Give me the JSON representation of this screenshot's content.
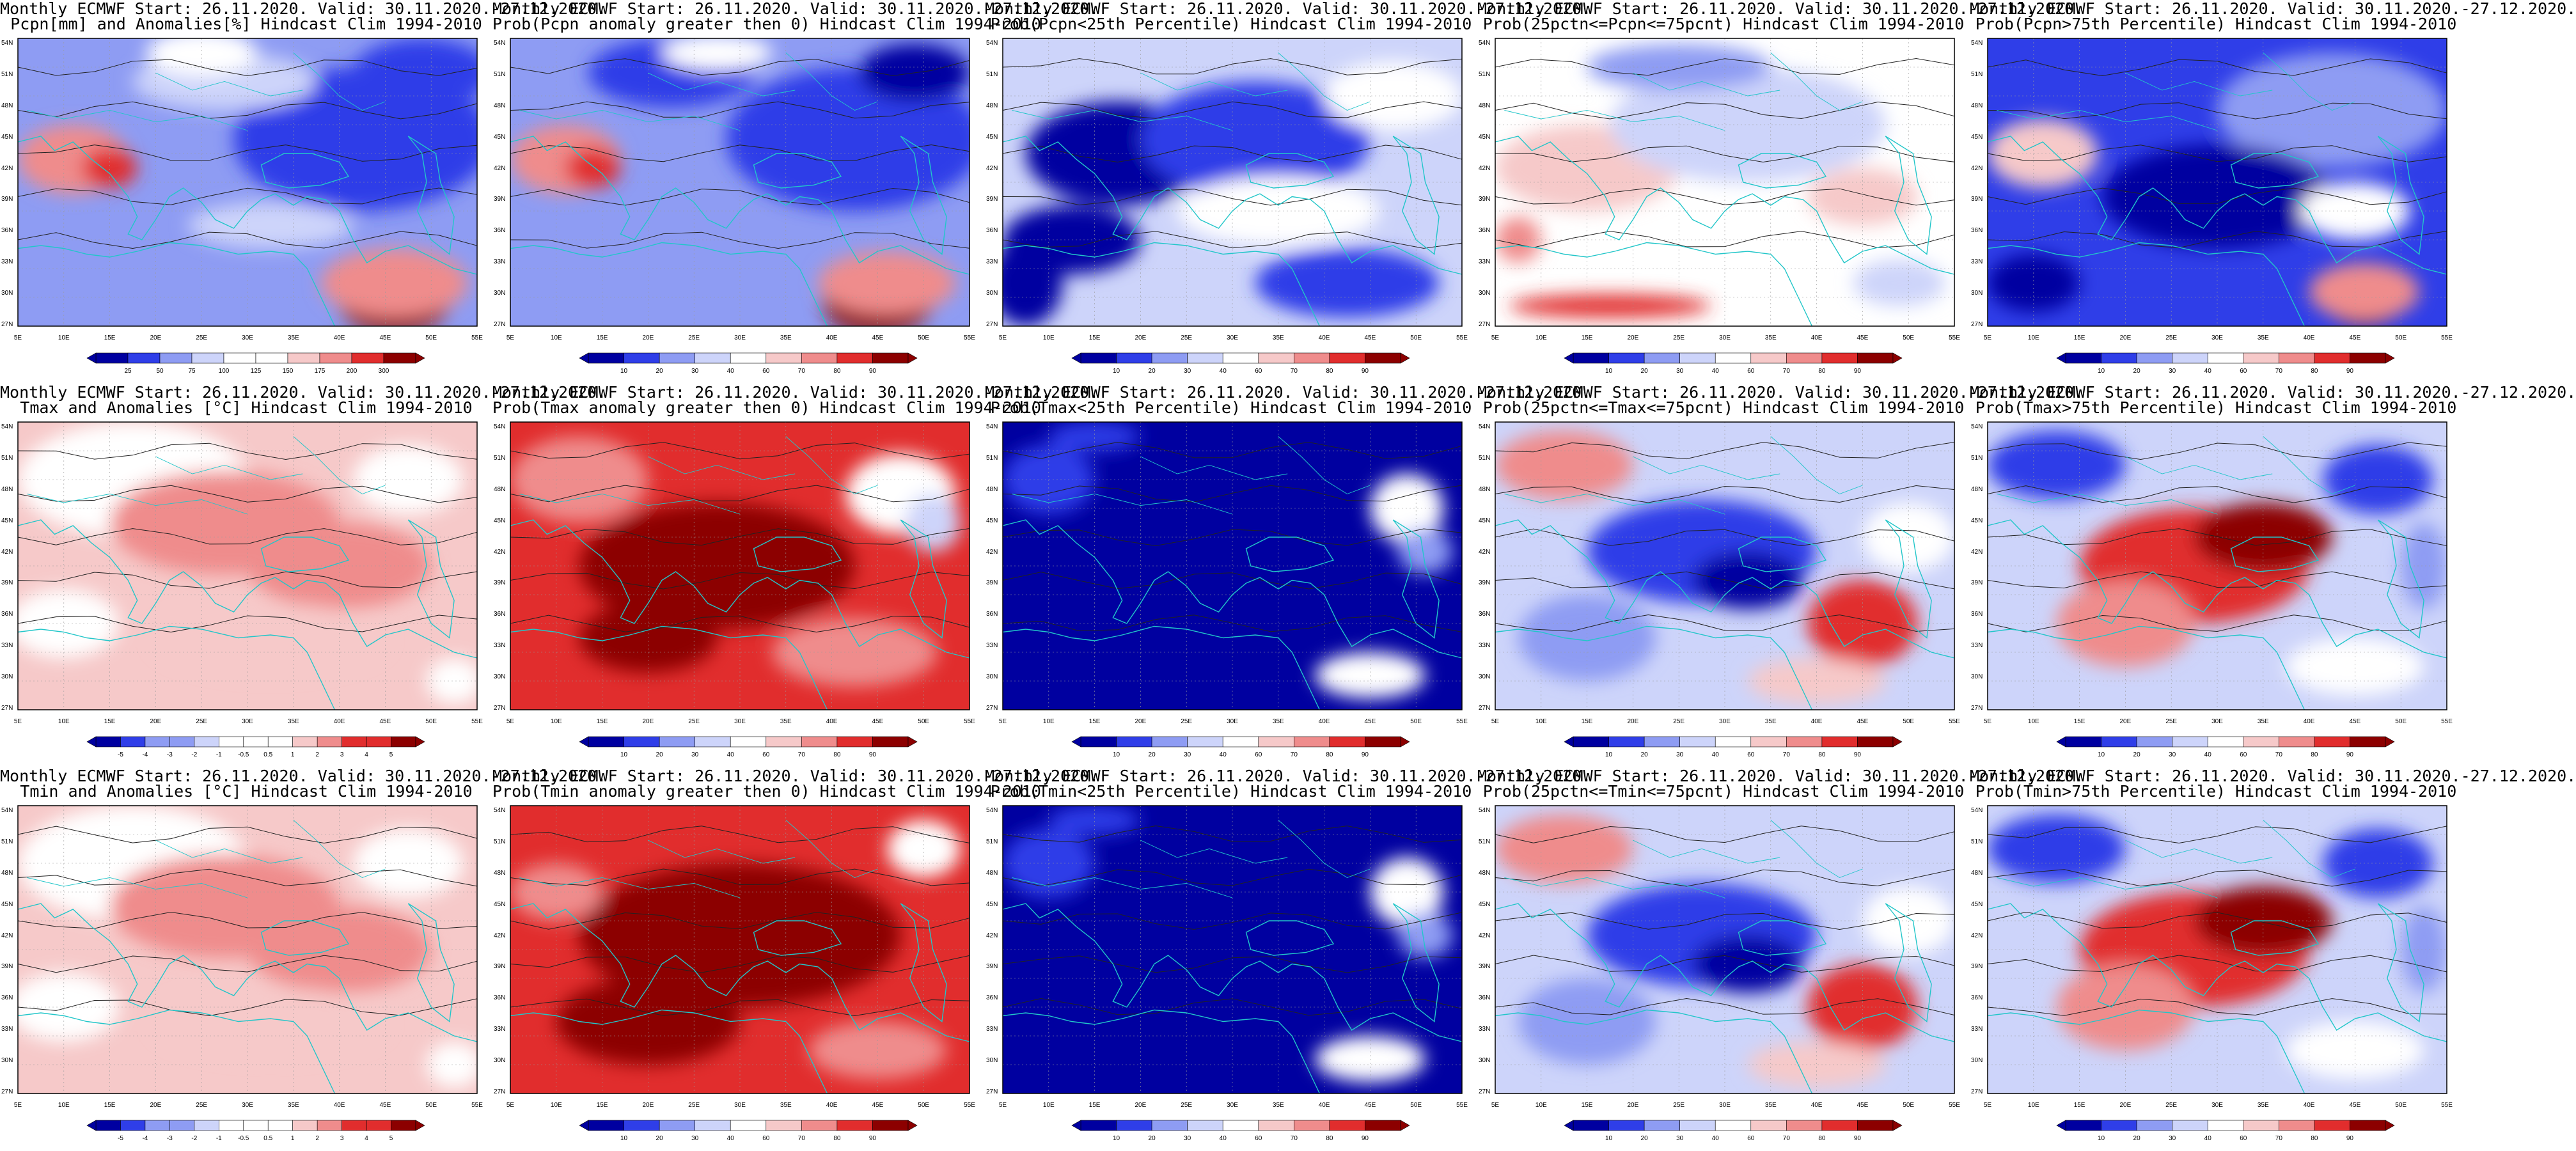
{
  "colors": {
    "coast": "#22c6c9",
    "contour": "#222222",
    "neg3": "#0000a0",
    "neg2": "#2f3ee8",
    "neg1": "#8e9cf3",
    "neg0": "#cdd4fa",
    "neutral": "#ffffff",
    "pos0": "#f6c9c9",
    "pos1": "#ef8c8c",
    "pos2": "#e12d2d",
    "pos3": "#8c0000"
  },
  "lat_labels": [
    "54N",
    "51N",
    "48N",
    "45N",
    "42N",
    "39N",
    "36N",
    "33N",
    "30N",
    "27N"
  ],
  "lon_labels": [
    "5E",
    "10E",
    "15E",
    "20E",
    "25E",
    "30E",
    "35E",
    "40E",
    "45E",
    "50E",
    "55E"
  ],
  "panels": [
    {
      "title1": "Monthly ECMWF Start: 26.11.2020. Valid: 30.11.2020.-27.12.2020.",
      "title2": "Pcpn[mm] and Anomalies[%] Hindcast Clim 1994-2010",
      "colorbar_ticks": [
        "25",
        "50",
        "75",
        "100",
        "125",
        "150",
        "175",
        "200",
        "300"
      ],
      "colorbar_kind": "anom",
      "style": "prec_anom",
      "lat_start": "54N"
    },
    {
      "title1": "Monthly ECMWF Start: 26.11.2020. Valid: 30.11.2020.-27.12.2020.",
      "title2": "Prob(Pcpn anomaly greater then 0) Hindcast Clim 1994-2010",
      "colorbar_ticks": [
        "10",
        "20",
        "30",
        "40",
        "60",
        "70",
        "80",
        "90"
      ],
      "colorbar_kind": "prob",
      "style": "prec_prob",
      "lat_start": "54N"
    },
    {
      "title1": "Monthly ECMWF Start: 26.11.2020. Valid: 30.11.2020.-27.12.2020.",
      "title2": "Prob(Pcpn<25th Percentile) Hindcast Clim 1994-2010",
      "colorbar_ticks": [
        "10",
        "20",
        "30",
        "40",
        "60",
        "70",
        "80",
        "90"
      ],
      "colorbar_kind": "prob",
      "style": "prec_low",
      "lat_start": "54N"
    },
    {
      "title1": "Monthly ECMWF Start: 26.11.2020. Valid: 30.11.2020.-27.12.2020.",
      "title2": "Prob(25pctn<=Pcpn<=75pcnt) Hindcast Clim 1994-2010",
      "colorbar_ticks": [
        "10",
        "20",
        "30",
        "40",
        "60",
        "70",
        "80",
        "90"
      ],
      "colorbar_kind": "prob",
      "style": "prec_mid",
      "lat_start": "54N"
    },
    {
      "title1": "Monthly ECMWF Start: 26.11.2020. Valid: 30.11.2020.-27.12.2020.",
      "title2": "Prob(Pcpn>75th Percentile) Hindcast Clim 1994-2010",
      "colorbar_ticks": [
        "10",
        "20",
        "30",
        "40",
        "60",
        "70",
        "80",
        "90"
      ],
      "colorbar_kind": "prob",
      "style": "prec_high",
      "lat_start": "54N"
    },
    {
      "title1": "Monthly ECMWF Start: 26.11.2020. Valid: 30.11.2020.-27.12.2020.",
      "title2": "Tmax and Anomalies [°C] Hindcast Clim 1994-2010",
      "colorbar_ticks": [
        "-5",
        "-4",
        "-3",
        "-2",
        "-1",
        "-0.5",
        "0.5",
        "1",
        "2",
        "3",
        "4",
        "5"
      ],
      "colorbar_kind": "anom",
      "style": "t_anom",
      "lat_start": "54N"
    },
    {
      "title1": "Monthly ECMWF Start: 26.11.2020. Valid: 30.11.2020.-27.12.2020.",
      "title2": "Prob(Tmax anomaly greater then 0) Hindcast Clim 1994-2010",
      "colorbar_ticks": [
        "10",
        "20",
        "30",
        "40",
        "60",
        "70",
        "80",
        "90"
      ],
      "colorbar_kind": "prob",
      "style": "t_prob",
      "lat_start": "54N"
    },
    {
      "title1": "Monthly ECMWF Start: 26.11.2020. Valid: 30.11.2020.-27.12.2020.",
      "title2": "Prob(Tmax<25th Percentile) Hindcast Clim 1994-2010",
      "colorbar_ticks": [
        "10",
        "20",
        "30",
        "40",
        "60",
        "70",
        "80",
        "90"
      ],
      "colorbar_kind": "prob",
      "style": "t_low",
      "lat_start": "54N"
    },
    {
      "title1": "Monthly ECMWF Start: 26.11.2020. Valid: 30.11.2020.-27.12.2020.",
      "title2": "Prob(25pctn<=Tmax<=75pcnt) Hindcast Clim 1994-2010",
      "colorbar_ticks": [
        "10",
        "20",
        "30",
        "40",
        "60",
        "70",
        "80",
        "90"
      ],
      "colorbar_kind": "prob",
      "style": "t_mid",
      "lat_start": "54N"
    },
    {
      "title1": "Monthly ECMWF Start: 26.11.2020. Valid: 30.11.2020.-27.12.2020.",
      "title2": "Prob(Tmax>75th Percentile) Hindcast Clim 1994-2010",
      "colorbar_ticks": [
        "10",
        "20",
        "30",
        "40",
        "60",
        "70",
        "80",
        "90"
      ],
      "colorbar_kind": "prob",
      "style": "t_high",
      "lat_start": "54N"
    },
    {
      "title1": "Monthly ECMWF Start: 26.11.2020. Valid: 30.11.2020.-27.12.2020.",
      "title2": "Tmin and Anomalies [°C] Hindcast Clim 1994-2010",
      "colorbar_ticks": [
        "-5",
        "-4",
        "-3",
        "-2",
        "-1",
        "-0.5",
        "0.5",
        "1",
        "2",
        "3",
        "4",
        "5"
      ],
      "colorbar_kind": "anom",
      "style": "t_anom",
      "lat_start": "54N"
    },
    {
      "title1": "Monthly ECMWF Start: 26.11.2020. Valid: 30.11.2020.-27.12.2020.",
      "title2": "Prob(Tmin anomaly greater then 0) Hindcast Clim 1994-2010",
      "colorbar_ticks": [
        "10",
        "20",
        "30",
        "40",
        "60",
        "70",
        "80",
        "90"
      ],
      "colorbar_kind": "prob",
      "style": "t_prob_strong",
      "lat_start": "54N"
    },
    {
      "title1": "Monthly ECMWF Start: 26.11.2020. Valid: 30.11.2020.-27.12.2020.",
      "title2": "Prob(Tmin<25th Percentile) Hindcast Clim 1994-2010",
      "colorbar_ticks": [
        "10",
        "20",
        "30",
        "40",
        "60",
        "70",
        "80",
        "90"
      ],
      "colorbar_kind": "prob",
      "style": "t_low",
      "lat_start": "54N"
    },
    {
      "title1": "Monthly ECMWF Start: 26.11.2020. Valid: 30.11.2020.-27.12.2020.",
      "title2": "Prob(25pctn<=Tmin<=75pcnt) Hindcast Clim 1994-2010",
      "colorbar_ticks": [
        "10",
        "20",
        "30",
        "40",
        "60",
        "70",
        "80",
        "90"
      ],
      "colorbar_kind": "prob",
      "style": "t_mid",
      "lat_start": "54N"
    },
    {
      "title1": "Monthly ECMWF Start: 26.11.2020. Valid: 30.11.2020.-27.12.2020.",
      "title2": "Prob(Tmin>75th Percentile) Hindcast Clim 1994-2010",
      "colorbar_ticks": [
        "10",
        "20",
        "30",
        "40",
        "60",
        "70",
        "80",
        "90"
      ],
      "colorbar_kind": "prob",
      "style": "t_high",
      "lat_start": "54N"
    }
  ]
}
